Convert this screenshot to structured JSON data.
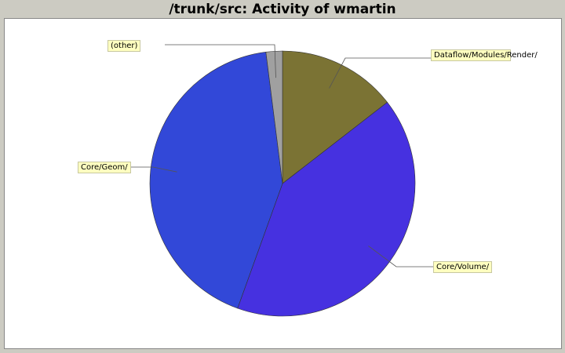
{
  "title": "/trunk/src: Activity of wmartin",
  "chart_data": {
    "type": "pie",
    "title": "/trunk/src: Activity of wmartin",
    "slices": [
      {
        "label": "Dataflow/Modules/Render/",
        "value": 14.5,
        "color": "#7b7334"
      },
      {
        "label": "Core/Volume/",
        "value": 41.0,
        "color": "#4631e0"
      },
      {
        "label": "Core/Geom/",
        "value": 42.5,
        "color": "#3248d8"
      },
      {
        "label": "(other)",
        "value": 2.0,
        "color": "#a0a0a0"
      }
    ]
  }
}
